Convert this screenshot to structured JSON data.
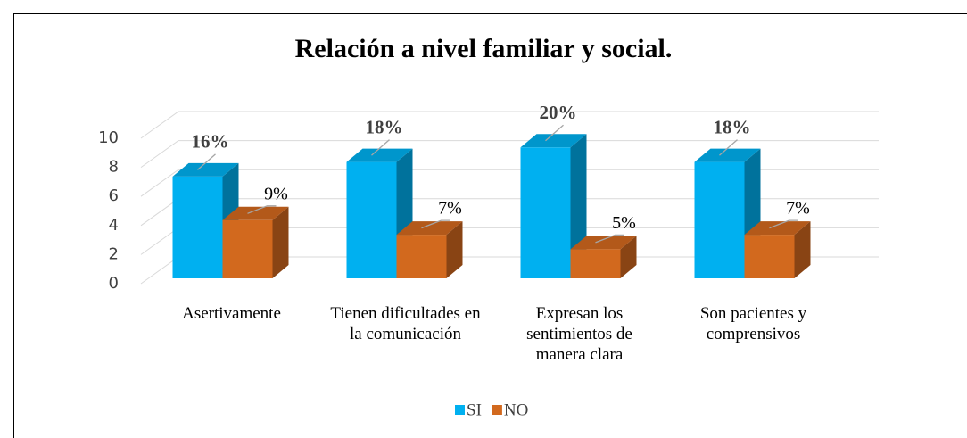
{
  "chart_data": {
    "type": "bar3d",
    "title": "Relación a nivel familiar y social.",
    "categories": [
      "Asertivamente",
      "Tienen dificultades en la comunicación",
      "Expresan los sentimientos de manera clara",
      "Son pacientes y comprensivos"
    ],
    "series": [
      {
        "name": "SI",
        "color": "#00b0f0",
        "values": [
          7,
          8,
          9,
          8
        ],
        "value_labels": [
          "16%",
          "18%",
          "20%",
          "18%"
        ]
      },
      {
        "name": "NO",
        "color": "#d2691e",
        "values": [
          4,
          3,
          2,
          3
        ],
        "value_labels": [
          "9%",
          "7%",
          "5%",
          "7%"
        ]
      }
    ],
    "ylim": [
      0,
      10
    ],
    "yticks": [
      0,
      2,
      4,
      6,
      8,
      10
    ],
    "grid": true,
    "legend": "bottom"
  }
}
